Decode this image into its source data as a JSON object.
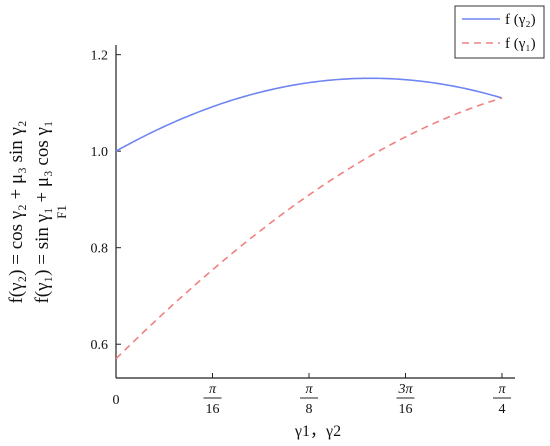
{
  "chart_data": {
    "type": "line",
    "xlabel": "γ1，γ2",
    "ylabel_lines": [
      "f(γ₂) = cos γ₂ + μ₃ sin γ₂",
      "f(γ₁) = sin γ₁ + μ₃ cos γ₁",
      "F1"
    ],
    "x_ticks": [
      {
        "value": 0,
        "num": "0",
        "den": ""
      },
      {
        "value": 0.19635,
        "num": "π",
        "den": "16"
      },
      {
        "value": 0.392699,
        "num": "π",
        "den": "8"
      },
      {
        "value": 0.589049,
        "num": "3π",
        "den": "16"
      },
      {
        "value": 0.785398,
        "num": "π",
        "den": "4"
      }
    ],
    "y_ticks": [
      "0.6",
      "0.8",
      "1.0",
      "1.2"
    ],
    "y_tick_values": [
      0.6,
      0.8,
      1.0,
      1.2
    ],
    "xlim": [
      0,
      0.785398
    ],
    "ylim": [
      0.53,
      1.22
    ],
    "mu3": 0.57,
    "legend_position": "top-right",
    "series": [
      {
        "name": "f (γ₂)",
        "style": "solid",
        "color": "#6f86f2",
        "x": [
          0,
          0.0785,
          0.1571,
          0.2356,
          0.3142,
          0.3927,
          0.4712,
          0.5147,
          0.5498,
          0.6283,
          0.7069,
          0.7854
        ],
        "y": [
          1.0,
          1.041,
          1.075,
          1.104,
          1.126,
          1.142,
          1.15,
          1.151,
          1.15,
          1.143,
          1.129,
          1.11
        ]
      },
      {
        "name": "f (γ₁)",
        "style": "dashed",
        "color": "#f08080",
        "x": [
          0,
          0.0785,
          0.1571,
          0.2356,
          0.3142,
          0.3927,
          0.4712,
          0.5498,
          0.6283,
          0.7069,
          0.7854
        ],
        "y": [
          0.57,
          0.645,
          0.72,
          0.778,
          0.851,
          0.92,
          0.982,
          1.027,
          1.068,
          1.097,
          1.11
        ]
      }
    ]
  }
}
